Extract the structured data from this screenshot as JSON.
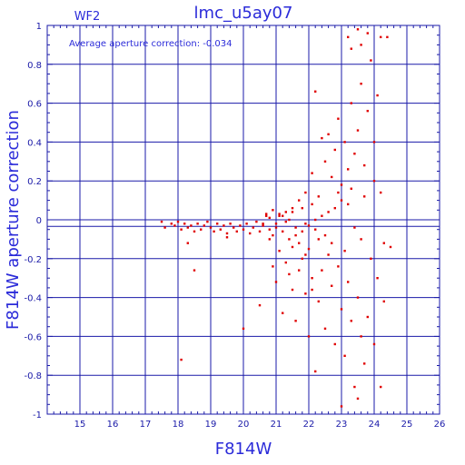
{
  "chart_data": {
    "type": "scatter",
    "title": "lmc_u5ay07",
    "chip_label": "WF2",
    "annotation": "Average aperture correction:  -0.034",
    "xlabel": "F814W",
    "ylabel": "F814W aperture correction",
    "xlim": [
      14,
      26
    ],
    "ylim": [
      -1,
      1
    ],
    "x_ticks": [
      15,
      16,
      17,
      18,
      19,
      20,
      21,
      22,
      23,
      24,
      25,
      26
    ],
    "y_ticks": [
      -1,
      -0.8,
      -0.6,
      -0.4,
      -0.2,
      0,
      0.2,
      0.4,
      0.6,
      0.8,
      1
    ],
    "y_tick_labels": [
      "-1",
      "-0.8",
      "-0.6",
      "-0.4",
      "-0.2",
      "0",
      "0.2",
      "0.4",
      "0.6",
      "0.8",
      "1"
    ],
    "grid": true,
    "reference_lines": [
      0,
      -0.034
    ],
    "colors": {
      "axes": "#1a1aa8",
      "points": "#e00000",
      "text": "#2b2bd9"
    },
    "series": [
      {
        "color": "#e00000",
        "points": [
          [
            17.5,
            -0.01
          ],
          [
            17.6,
            -0.04
          ],
          [
            17.8,
            -0.02
          ],
          [
            17.9,
            -0.03
          ],
          [
            18.0,
            -0.01
          ],
          [
            18.1,
            -0.05
          ],
          [
            18.2,
            -0.02
          ],
          [
            18.3,
            -0.04
          ],
          [
            18.4,
            -0.03
          ],
          [
            18.5,
            -0.06
          ],
          [
            18.6,
            -0.02
          ],
          [
            18.7,
            -0.05
          ],
          [
            18.8,
            -0.03
          ],
          [
            18.9,
            -0.01
          ],
          [
            19.0,
            -0.04
          ],
          [
            19.1,
            -0.06
          ],
          [
            19.2,
            -0.02
          ],
          [
            19.3,
            -0.05
          ],
          [
            19.4,
            -0.03
          ],
          [
            19.5,
            -0.07
          ],
          [
            19.6,
            -0.02
          ],
          [
            19.7,
            -0.04
          ],
          [
            19.8,
            -0.06
          ],
          [
            19.9,
            -0.03
          ],
          [
            20.0,
            -0.05
          ],
          [
            20.1,
            -0.02
          ],
          [
            20.2,
            -0.07
          ],
          [
            20.3,
            -0.04
          ],
          [
            20.4,
            -0.01
          ],
          [
            20.5,
            -0.06
          ],
          [
            20.6,
            -0.03
          ],
          [
            20.7,
            0.02
          ],
          [
            20.8,
            -0.05
          ],
          [
            20.9,
            -0.08
          ],
          [
            21.0,
            -0.02
          ],
          [
            21.1,
            0.03
          ],
          [
            21.2,
            -0.06
          ],
          [
            21.3,
            -0.01
          ],
          [
            21.4,
            -0.1
          ],
          [
            21.5,
            0.04
          ],
          [
            21.6,
            -0.04
          ],
          [
            21.7,
            -0.12
          ],
          [
            21.8,
            0.06
          ],
          [
            21.9,
            -0.02
          ],
          [
            22.0,
            -0.15
          ],
          [
            22.1,
            0.08
          ],
          [
            22.2,
            -0.05
          ],
          [
            22.3,
            0.12
          ],
          [
            18.3,
            -0.12
          ],
          [
            18.5,
            -0.26
          ],
          [
            18.1,
            -0.72
          ],
          [
            19.5,
            -0.09
          ],
          [
            20.0,
            -0.56
          ],
          [
            20.5,
            -0.44
          ],
          [
            20.9,
            -0.24
          ],
          [
            21.0,
            -0.32
          ],
          [
            21.2,
            -0.48
          ],
          [
            21.4,
            -0.28
          ],
          [
            21.5,
            -0.36
          ],
          [
            21.6,
            -0.52
          ],
          [
            21.8,
            -0.2
          ],
          [
            21.9,
            -0.38
          ],
          [
            22.0,
            -0.6
          ],
          [
            22.1,
            -0.3
          ],
          [
            22.2,
            -0.78
          ],
          [
            22.3,
            -0.42
          ],
          [
            22.4,
            -0.26
          ],
          [
            22.5,
            -0.56
          ],
          [
            22.6,
            -0.18
          ],
          [
            22.7,
            -0.34
          ],
          [
            22.8,
            -0.64
          ],
          [
            22.9,
            -0.24
          ],
          [
            23.0,
            -0.46
          ],
          [
            23.1,
            -0.7
          ],
          [
            23.2,
            -0.32
          ],
          [
            23.3,
            -0.52
          ],
          [
            23.4,
            -0.86
          ],
          [
            23.5,
            -0.4
          ],
          [
            23.6,
            -0.6
          ],
          [
            23.7,
            -0.74
          ],
          [
            23.8,
            -0.5
          ],
          [
            24.0,
            -0.64
          ],
          [
            24.2,
            -0.86
          ],
          [
            23.5,
            -0.92
          ],
          [
            23.0,
            -0.96
          ],
          [
            22.5,
            0.3
          ],
          [
            22.6,
            0.44
          ],
          [
            22.7,
            0.22
          ],
          [
            22.8,
            0.36
          ],
          [
            22.9,
            0.52
          ],
          [
            23.0,
            0.18
          ],
          [
            23.1,
            0.4
          ],
          [
            23.2,
            0.26
          ],
          [
            23.3,
            0.6
          ],
          [
            23.4,
            0.34
          ],
          [
            23.5,
            0.46
          ],
          [
            23.6,
            0.7
          ],
          [
            23.7,
            0.28
          ],
          [
            23.8,
            0.56
          ],
          [
            23.9,
            0.82
          ],
          [
            24.0,
            0.4
          ],
          [
            24.1,
            0.64
          ],
          [
            23.2,
            0.94
          ],
          [
            23.5,
            0.98
          ],
          [
            23.8,
            0.96
          ],
          [
            24.2,
            0.94
          ],
          [
            24.4,
            0.94
          ],
          [
            23.3,
            0.88
          ],
          [
            23.6,
            0.9
          ],
          [
            22.2,
            0.66
          ],
          [
            22.4,
            0.42
          ],
          [
            22.1,
            0.24
          ],
          [
            21.9,
            0.14
          ],
          [
            21.7,
            0.1
          ],
          [
            21.5,
            0.06
          ],
          [
            21.3,
            0.04
          ],
          [
            21.1,
            0.02
          ],
          [
            20.9,
            0.05
          ],
          [
            20.7,
            0.03
          ],
          [
            24.3,
            -0.12
          ],
          [
            24.5,
            -0.14
          ],
          [
            24.1,
            -0.3
          ],
          [
            24.3,
            -0.42
          ],
          [
            23.9,
            -0.2
          ],
          [
            23.6,
            -0.1
          ],
          [
            23.4,
            -0.04
          ],
          [
            23.2,
            0.08
          ],
          [
            23.0,
            0.1
          ],
          [
            22.8,
            0.06
          ],
          [
            22.6,
            0.04
          ],
          [
            22.4,
            0.02
          ],
          [
            22.2,
            0.0
          ],
          [
            22.0,
            -0.03
          ],
          [
            21.8,
            -0.06
          ],
          [
            21.6,
            -0.08
          ],
          [
            21.4,
            0.0
          ],
          [
            21.2,
            0.02
          ],
          [
            21.0,
            -0.04
          ],
          [
            20.8,
            0.01
          ],
          [
            20.6,
            -0.02
          ],
          [
            24.0,
            0.2
          ],
          [
            24.2,
            0.14
          ],
          [
            23.7,
            0.12
          ],
          [
            23.3,
            0.16
          ],
          [
            22.9,
            0.14
          ],
          [
            23.1,
            -0.16
          ],
          [
            22.7,
            -0.12
          ],
          [
            22.5,
            -0.08
          ],
          [
            22.3,
            -0.1
          ],
          [
            21.9,
            -0.18
          ],
          [
            21.5,
            -0.14
          ],
          [
            21.1,
            -0.16
          ],
          [
            20.8,
            -0.1
          ],
          [
            21.3,
            -0.22
          ],
          [
            21.7,
            -0.26
          ],
          [
            22.1,
            -0.36
          ]
        ]
      }
    ]
  }
}
